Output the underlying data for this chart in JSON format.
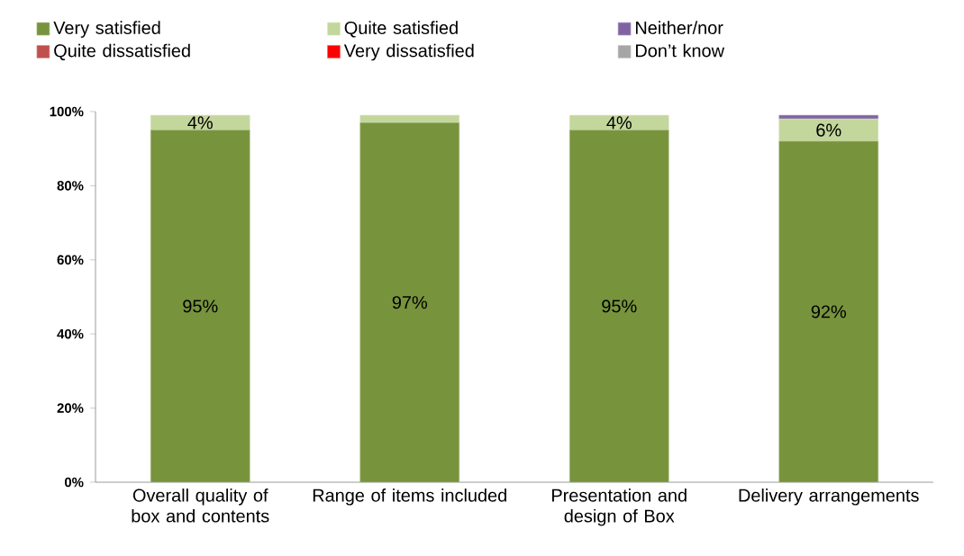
{
  "chart_data": {
    "type": "bar",
    "stacked": true,
    "categories": [
      "Overall quality of box and contents",
      "Range of items included",
      "Presentation and design of Box",
      "Delivery arrangements"
    ],
    "series": [
      {
        "name": "Very satisfied",
        "color": "#77933c",
        "values": [
          95,
          97,
          95,
          92
        ],
        "value_labels": [
          "95%",
          "97%",
          "95%",
          "92%"
        ]
      },
      {
        "name": "Quite satisfied",
        "color": "#c3d69b",
        "values": [
          4,
          2,
          4,
          6
        ],
        "value_labels": [
          "4%",
          null,
          "4%",
          "6%"
        ]
      },
      {
        "name": "Neither/nor",
        "color": "#8064a2",
        "values": [
          0,
          0,
          0,
          1
        ]
      },
      {
        "name": "Quite dissatisfied",
        "color": "#c0504d",
        "values": [
          0,
          0,
          0,
          0
        ]
      },
      {
        "name": "Very dissatisfied",
        "color": "#ff0000",
        "values": [
          0,
          0,
          0,
          0
        ]
      },
      {
        "name": "Don’t know",
        "color": "#a6a6a6",
        "values": [
          0,
          0,
          0,
          0
        ]
      }
    ],
    "ylim": [
      0,
      100
    ],
    "yticks": [
      {
        "value": 0,
        "label": "0%"
      },
      {
        "value": 20,
        "label": "20%"
      },
      {
        "value": 40,
        "label": "40%"
      },
      {
        "value": 60,
        "label": "60%"
      },
      {
        "value": 80,
        "label": "80%"
      },
      {
        "value": 100,
        "label": "100%"
      }
    ],
    "grid": false,
    "legend": "top"
  }
}
